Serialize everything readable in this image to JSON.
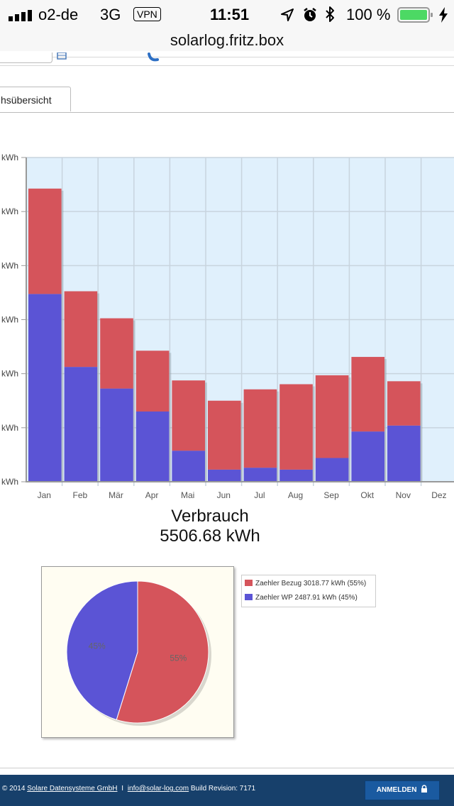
{
  "status": {
    "carrier": "o2-de",
    "network": "3G",
    "vpn": "VPN",
    "time": "11:51",
    "battery": "100 %"
  },
  "browser": {
    "url": "solarlog.fritz.box"
  },
  "tab": {
    "label": "hsübersicht"
  },
  "colors": {
    "bezug": "#d5545b",
    "wp": "#5b54d5",
    "plot_bg": "#e0f0fc",
    "footer": "#17406b"
  },
  "chart_data": [
    {
      "type": "bar",
      "stacked": true,
      "categories": [
        "Jan",
        "Feb",
        "Mär",
        "Apr",
        "Mai",
        "Jun",
        "Jul",
        "Aug",
        "Sep",
        "Okt",
        "Nov",
        "Dez"
      ],
      "series": [
        {
          "name": "Zaehler WP",
          "values": [
            6950,
            4250,
            3450,
            2600,
            1150,
            450,
            520,
            450,
            880,
            1860,
            2080,
            0
          ]
        },
        {
          "name": "Zaehler Bezug",
          "values": [
            3900,
            2800,
            2600,
            2250,
            2600,
            2550,
            2900,
            3160,
            3060,
            2760,
            1640,
            0
          ]
        }
      ],
      "ytick_unit": "kWh",
      "ylim": [
        0,
        12000
      ],
      "grid": true
    },
    {
      "type": "pie",
      "title": "Verbrauch",
      "total": "5506.68 kWh",
      "slices": [
        {
          "name": "Zaehler Bezug",
          "value": 3018.77,
          "percent": 55,
          "pct_label": "55%",
          "legend": "Zaehler Bezug 3018.77 kWh (55%)"
        },
        {
          "name": "Zaehler WP",
          "value": 2487.91,
          "percent": 45,
          "pct_label": "45%",
          "legend": "Zaehler WP 2487.91 kWh (45%)"
        }
      ]
    }
  ],
  "footer": {
    "copyright": "© 2014",
    "company": "Solare Datensysteme GmbH",
    "separator": "I",
    "email": "info@solar-log.com",
    "build": "Build Revision: 7171",
    "login": "ANMELDEN"
  }
}
